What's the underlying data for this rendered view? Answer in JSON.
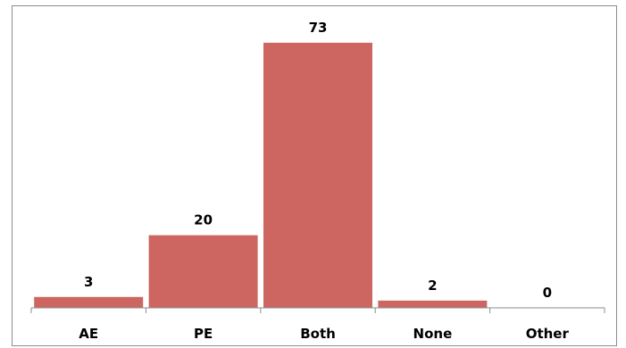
{
  "chart_data": {
    "type": "bar",
    "categories": [
      "AE",
      "PE",
      "Both",
      "None",
      "Other"
    ],
    "values": [
      3,
      20,
      73,
      2,
      0
    ],
    "title": "",
    "xlabel": "",
    "ylabel": "",
    "ylim": [
      0,
      80
    ],
    "grid": false,
    "legend": "none",
    "data_labels": true,
    "bar_color": "#cd6661"
  }
}
